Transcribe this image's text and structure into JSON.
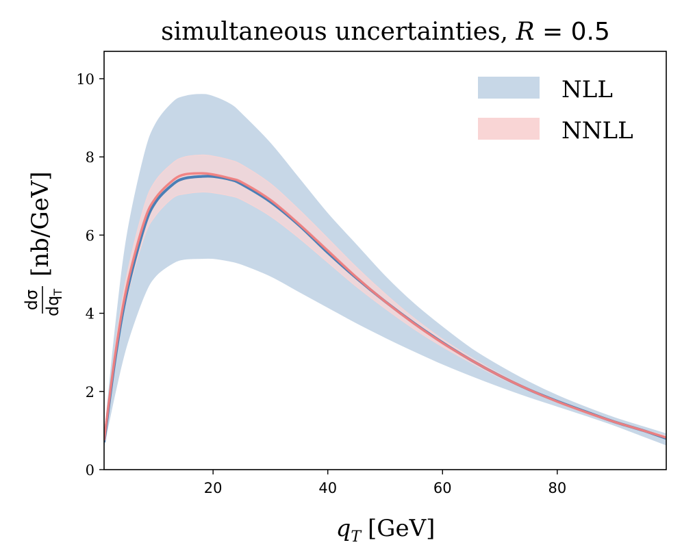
{
  "chart_data": {
    "type": "area",
    "title": {
      "text": "simultaneous uncertainties, ",
      "math_var": "R",
      "math_rest": " = 0.5"
    },
    "xlabel": {
      "var": "q",
      "sub": "T",
      "unit": "[GeV]"
    },
    "ylabel": {
      "num": "dσ",
      "den_var": "dq",
      "den_sub": "T",
      "unit": "[nb/GeV]"
    },
    "xlim": [
      1,
      99
    ],
    "ylim": [
      0,
      10.7
    ],
    "xticks": [
      20,
      40,
      60,
      80
    ],
    "yticks": [
      0,
      2,
      4,
      6,
      8,
      10
    ],
    "legend": {
      "location": "top-right"
    },
    "x": [
      1,
      3,
      5,
      8,
      10,
      13,
      15,
      18,
      20,
      23,
      25,
      30,
      35,
      40,
      45,
      50,
      55,
      60,
      65,
      70,
      75,
      80,
      85,
      90,
      95,
      99
    ],
    "series": [
      {
        "name": "NLL",
        "central_color": "#4a7fb5",
        "band_color": "#c7d7e7",
        "central": [
          0.7,
          2.9,
          4.55,
          6.2,
          6.85,
          7.3,
          7.45,
          7.5,
          7.5,
          7.42,
          7.3,
          6.85,
          6.25,
          5.55,
          4.9,
          4.3,
          3.75,
          3.25,
          2.8,
          2.4,
          2.05,
          1.75,
          1.48,
          1.22,
          1.0,
          0.8
        ],
        "lower": [
          0.6,
          2.0,
          3.2,
          4.45,
          4.95,
          5.28,
          5.38,
          5.4,
          5.4,
          5.33,
          5.25,
          4.95,
          4.55,
          4.15,
          3.75,
          3.38,
          3.03,
          2.7,
          2.4,
          2.12,
          1.86,
          1.62,
          1.38,
          1.13,
          0.85,
          0.63
        ],
        "upper": [
          0.8,
          3.7,
          6.0,
          8.05,
          8.85,
          9.4,
          9.55,
          9.6,
          9.55,
          9.35,
          9.1,
          8.35,
          7.45,
          6.55,
          5.75,
          4.95,
          4.25,
          3.65,
          3.1,
          2.65,
          2.25,
          1.9,
          1.6,
          1.33,
          1.1,
          0.92
        ]
      },
      {
        "name": "NNLL",
        "central_color": "#f08080",
        "band_color": "#f9d5d5",
        "central": [
          0.75,
          3.0,
          4.7,
          6.35,
          6.95,
          7.4,
          7.55,
          7.58,
          7.55,
          7.45,
          7.35,
          6.9,
          6.28,
          5.6,
          4.92,
          4.3,
          3.74,
          3.24,
          2.8,
          2.4,
          2.05,
          1.74,
          1.47,
          1.22,
          1.0,
          0.82
        ],
        "lower": [
          0.7,
          2.8,
          4.4,
          5.95,
          6.5,
          6.95,
          7.05,
          7.1,
          7.08,
          7.0,
          6.9,
          6.48,
          5.92,
          5.3,
          4.68,
          4.12,
          3.6,
          3.14,
          2.73,
          2.35,
          2.02,
          1.72,
          1.46,
          1.22,
          0.99,
          0.78
        ],
        "upper": [
          0.8,
          3.2,
          5.0,
          6.75,
          7.4,
          7.85,
          8.0,
          8.05,
          8.02,
          7.92,
          7.8,
          7.32,
          6.65,
          5.92,
          5.18,
          4.5,
          3.88,
          3.34,
          2.87,
          2.45,
          2.08,
          1.76,
          1.49,
          1.24,
          1.02,
          0.86
        ]
      }
    ]
  }
}
